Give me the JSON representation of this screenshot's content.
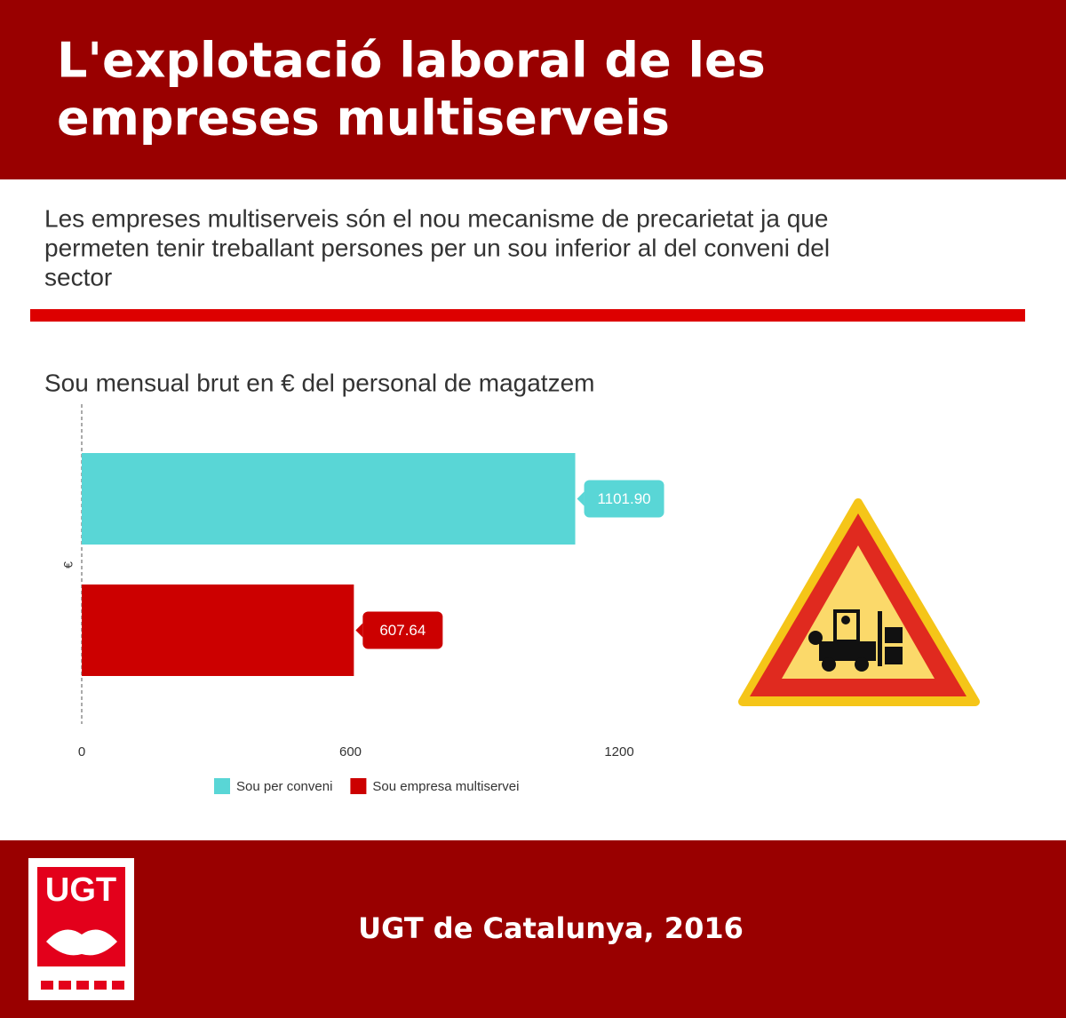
{
  "header": {
    "title_lines": [
      "L'explotació laboral de les",
      "empreses multiserveis"
    ]
  },
  "intro": {
    "lines": [
      "Les empreses multiserveis són el nou mecanisme de precarietat ja que",
      "permeten tenir treballant persones per un sou inferior al del conveni del",
      "sector"
    ]
  },
  "chart_data": {
    "type": "bar",
    "orientation": "horizontal",
    "title": "Sou mensual brut en € del  personal de magatzem",
    "y_label": "€",
    "series": [
      {
        "name": "Sou per conveni",
        "color": "#59d6d6",
        "values": [
          1101.9
        ],
        "value_labels": [
          "1101.90"
        ]
      },
      {
        "name": "Sou empresa multiservei",
        "color": "#cc0000",
        "values": [
          607.64
        ]
      }
    ],
    "xlim": [
      0,
      1200
    ],
    "xticks": [
      0,
      600,
      1200
    ]
  },
  "footer": {
    "credit": "UGT de Catalunya, 2016",
    "logo_text": "UGT"
  }
}
